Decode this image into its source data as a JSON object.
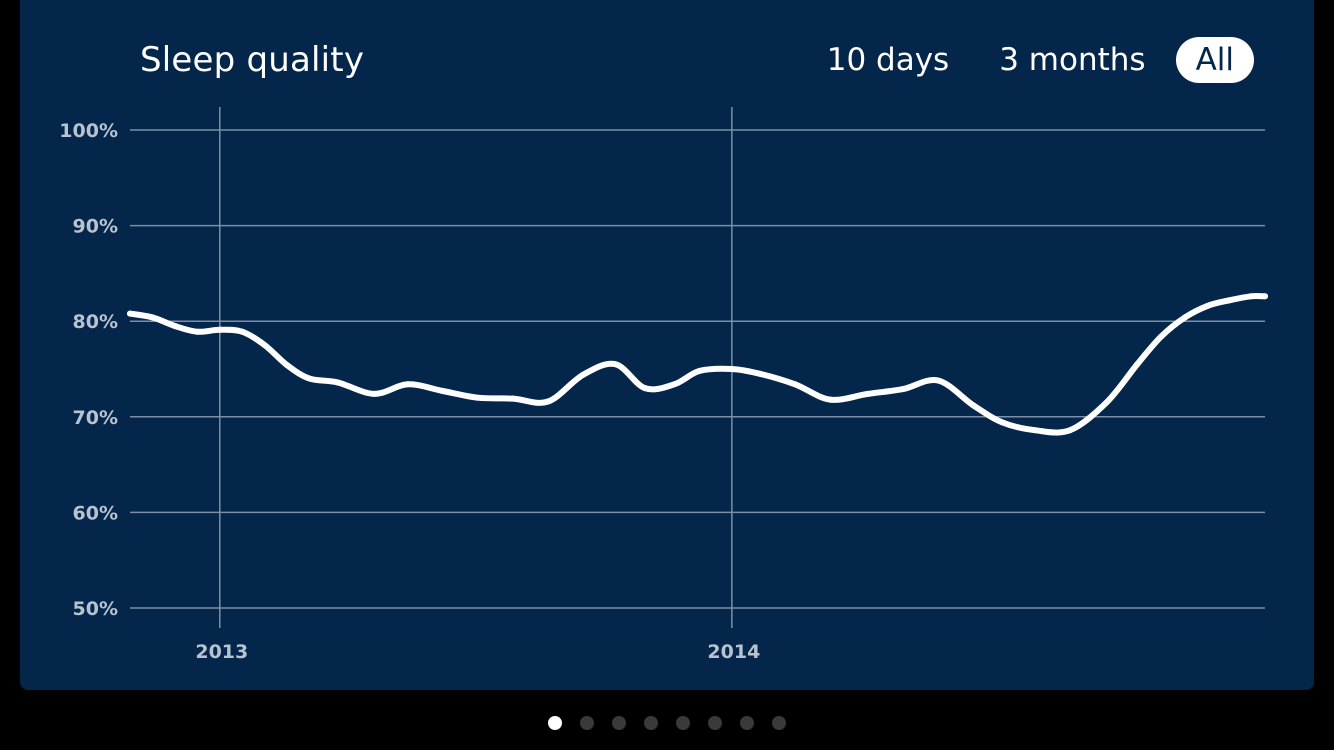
{
  "header": {
    "title": "Sleep quality",
    "ranges": [
      {
        "label": "10 days",
        "active": false
      },
      {
        "label": "3 months",
        "active": false
      },
      {
        "label": "All",
        "active": true
      }
    ]
  },
  "colors": {
    "background": "#000000",
    "card": "#03264a",
    "line": "#ffffff",
    "grid": "#7d8fa6",
    "tick_label": "#b7c3d1",
    "dot_inactive": "#3a3a3a",
    "dot_active": "#ffffff"
  },
  "chart_data": {
    "type": "line",
    "title": "Sleep quality",
    "xlabel": "",
    "ylabel": "",
    "y_unit": "%",
    "ylim": [
      50,
      100
    ],
    "yticks": [
      100,
      90,
      80,
      70,
      60,
      50
    ],
    "ytick_labels": [
      "100%",
      "90%",
      "80%",
      "70%",
      "60%",
      "50%"
    ],
    "xlim": [
      "2012-10-29",
      "2015-01-16"
    ],
    "xticks": [
      "2013-01-01",
      "2014-01-01"
    ],
    "xtick_labels": [
      "2013",
      "2014"
    ],
    "grid": true,
    "legend": "none",
    "series": [
      {
        "x": [
          "2012-10-29",
          "2012-11-14",
          "2012-11-30",
          "2012-12-16",
          "2013-01-01",
          "2013-01-17",
          "2013-02-02",
          "2013-02-18",
          "2013-03-06",
          "2013-03-26",
          "2013-04-21",
          "2013-05-15",
          "2013-06-09",
          "2013-07-04",
          "2013-07-29",
          "2013-08-23",
          "2013-09-17",
          "2013-10-10",
          "2013-10-31",
          "2013-11-21",
          "2013-12-09",
          "2014-01-01",
          "2014-01-21",
          "2014-02-15",
          "2014-03-12",
          "2014-04-08",
          "2014-05-03",
          "2014-05-28",
          "2014-06-22",
          "2014-07-13",
          "2014-08-05",
          "2014-08-30",
          "2014-09-25",
          "2014-10-17",
          "2014-11-03",
          "2014-11-20",
          "2014-12-06",
          "2014-12-22",
          "2015-01-06",
          "2015-01-16"
        ],
        "values": [
          80.8,
          80.4,
          79.5,
          78.9,
          79.1,
          78.9,
          77.5,
          75.4,
          74.0,
          73.6,
          72.4,
          73.4,
          72.7,
          72.0,
          71.9,
          71.6,
          74.4,
          75.5,
          73.0,
          73.4,
          74.8,
          75.0,
          74.5,
          73.4,
          71.8,
          72.4,
          72.9,
          73.8,
          71.2,
          69.4,
          68.6,
          68.6,
          71.5,
          75.5,
          78.4,
          80.4,
          81.6,
          82.2,
          82.6,
          82.6
        ]
      }
    ]
  },
  "pager": {
    "count": 8,
    "active_index": 0
  }
}
